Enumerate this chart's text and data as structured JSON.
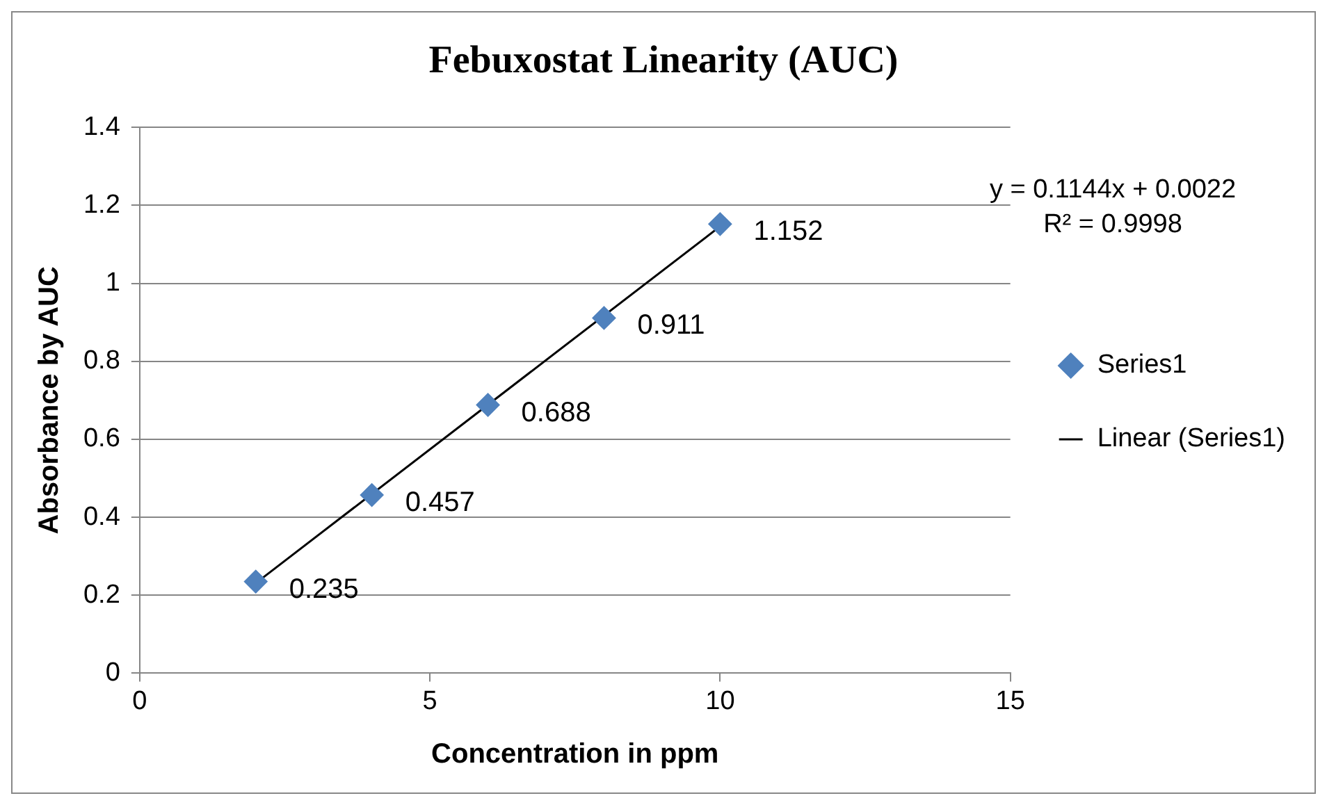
{
  "chart_data": {
    "type": "scatter",
    "title": "Febuxostat Linearity (AUC)",
    "xlabel": "Concentration in ppm",
    "ylabel": "Absorbance by AUC",
    "xlim": [
      0,
      15
    ],
    "xticks": [
      0,
      5,
      10,
      15
    ],
    "ylim": [
      0,
      1.4
    ],
    "yticks": [
      0,
      0.2,
      0.4,
      0.6,
      0.8,
      1,
      1.2,
      1.4
    ],
    "series": [
      {
        "name": "Series1",
        "color": "#4f81bd",
        "marker": "diamond",
        "x": [
          2,
          4,
          6,
          8,
          10
        ],
        "values": [
          0.235,
          0.457,
          0.688,
          0.911,
          1.152
        ],
        "data_labels": true
      },
      {
        "name": "Linear (Series1)",
        "type": "line",
        "color": "#000000",
        "marker": "none",
        "line_style": "solid",
        "x": [
          2,
          10
        ],
        "values": [
          0.231,
          1.146
        ]
      }
    ],
    "annotations": [
      "y = 0.1144x + 0.0022",
      "R² = 0.9998"
    ],
    "grid": "y",
    "legend": "right"
  }
}
